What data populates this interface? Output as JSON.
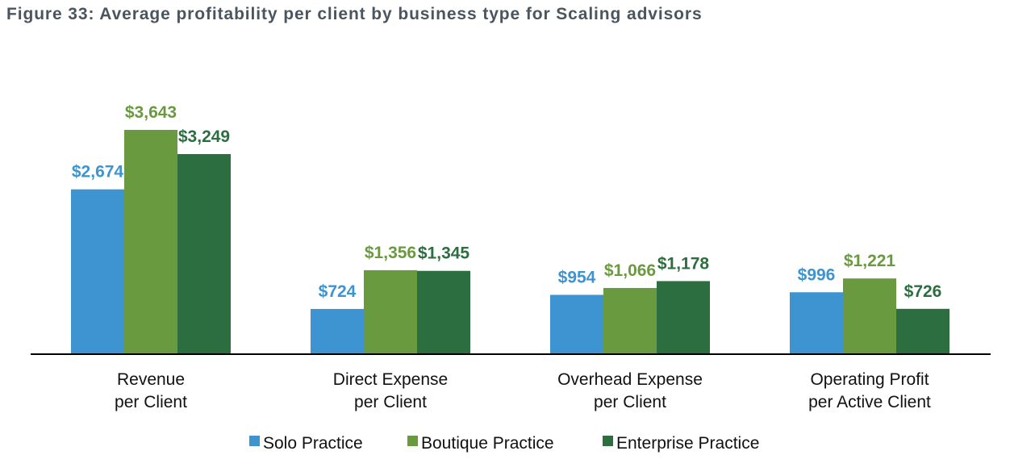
{
  "title": "Figure 33: Average profitability per client by business type for Scaling advisors",
  "chart_data": {
    "type": "bar",
    "categories": [
      [
        "Revenue",
        "per Client"
      ],
      [
        "Direct Expense",
        "per Client"
      ],
      [
        "Overhead Expense",
        "per Client"
      ],
      [
        "Operating Profit",
        "per Active Client"
      ]
    ],
    "series": [
      {
        "name": "Solo Practice",
        "color": "#3d94d0",
        "values": [
          2674,
          724,
          954,
          996
        ],
        "labels": [
          "$2,674",
          "$724",
          "$954",
          "$996"
        ]
      },
      {
        "name": "Boutique Practice",
        "color": "#6a9a3f",
        "values": [
          3643,
          1356,
          1066,
          1221
        ],
        "labels": [
          "$3,643",
          "$1,356",
          "$1,066",
          "$1,221"
        ]
      },
      {
        "name": "Enterprise Practice",
        "color": "#2d6e40",
        "values": [
          3249,
          1345,
          1178,
          726
        ],
        "labels": [
          "$3,249",
          "$1,345",
          "$1,178",
          "$726"
        ]
      }
    ],
    "ylim": [
      0,
      3643
    ],
    "xlabel": "",
    "ylabel": "",
    "grid": false,
    "legend": "bottom-center"
  }
}
